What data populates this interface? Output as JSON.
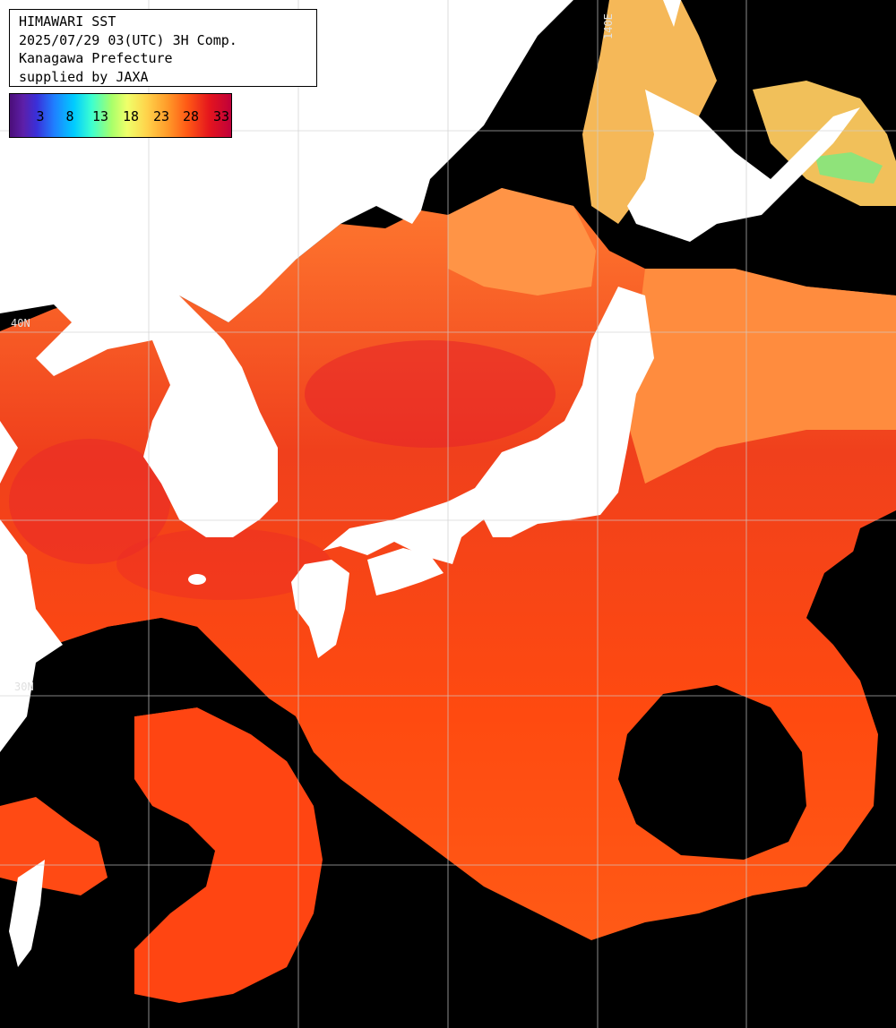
{
  "title": {
    "line1": "HIMAWARI SST",
    "line2": "2025/07/29 03(UTC) 3H Comp.",
    "line3": "Kanagawa Prefecture",
    "line4": "supplied by JAXA"
  },
  "legend": {
    "ticks": [
      "3",
      "8",
      "13",
      "18",
      "23",
      "28",
      "33"
    ]
  },
  "grid_labels": {
    "lat_40": "40N",
    "lat_30": "30N",
    "lon_140": "140E"
  },
  "colors": {
    "sea_warm": "#ff4a10",
    "sea_hot": "#e8202a",
    "sea_mild": "#ff8a3a",
    "sea_cool": "#f6c95a",
    "sea_cold": "#9ee870",
    "cloud": "#000000",
    "land": "#ffffff",
    "grid": "#cfcfcf"
  }
}
